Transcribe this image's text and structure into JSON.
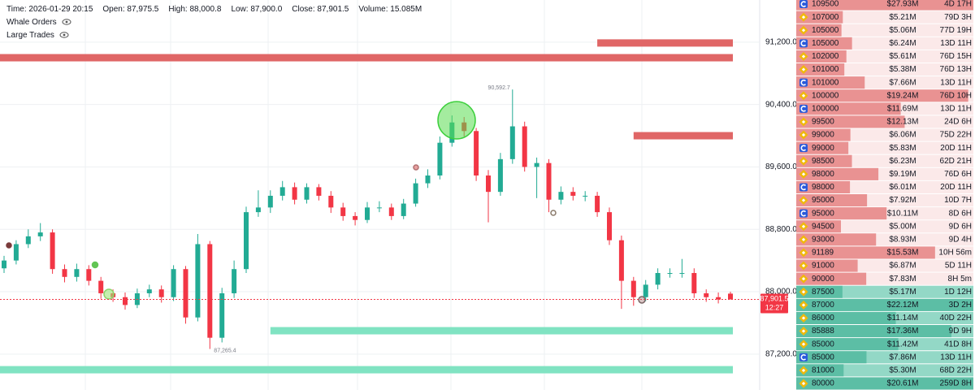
{
  "header": {
    "fields": [
      {
        "label": "Time:",
        "value": "2026-01-29 20:15"
      },
      {
        "label": "Open:",
        "value": "87,975.5"
      },
      {
        "label": "High:",
        "value": "88,000.8"
      },
      {
        "label": "Low:",
        "value": "87,900.0"
      },
      {
        "label": "Close:",
        "value": "87,901.5"
      },
      {
        "label": "Volume:",
        "value": "15.085M"
      }
    ],
    "toggles": [
      "Whale Orders",
      "Large Trades"
    ]
  },
  "chart_data": {
    "type": "candlestick",
    "open": [
      88300,
      88400,
      88610,
      88710,
      88760,
      88290,
      88190,
      88290,
      88140,
      87980,
      87930,
      87830,
      87980,
      88030,
      87930,
      88290,
      87670,
      88610,
      87410,
      87980,
      88290,
      89020,
      89080,
      89230,
      89340,
      89180,
      89340,
      89230,
      89080,
      88970,
      88920,
      89080,
      89080,
      88970,
      89130,
      89390,
      89490,
      89910,
      90170,
      90060,
      89490,
      89280,
      89700,
      90120,
      89600,
      89650,
      89180,
      89280,
      89230,
      89230,
      89020,
      88660,
      88140,
      87930,
      88090,
      88240,
      88240,
      88240,
      87980,
      87930,
      87975.5
    ],
    "high": [
      88460,
      88660,
      88800,
      88880,
      88800,
      88350,
      88360,
      88340,
      88190,
      88030,
      87990,
      88040,
      88090,
      88080,
      88340,
      88330,
      88740,
      88650,
      88050,
      88400,
      89090,
      89300,
      89300,
      89420,
      89400,
      89390,
      89380,
      89290,
      89140,
      89020,
      89150,
      89160,
      89130,
      89190,
      89450,
      89570,
      89990,
      90260,
      90240,
      90100,
      89560,
      89780,
      90592.7,
      90180,
      89720,
      89700,
      89350,
      89340,
      89290,
      89280,
      89080,
      88720,
      88190,
      88150,
      88300,
      88300,
      88420,
      88300,
      88030,
      87990,
      88000.8
    ],
    "low": [
      88240,
      88350,
      88560,
      88650,
      88230,
      88120,
      88130,
      88080,
      87910,
      87870,
      87770,
      87790,
      87930,
      87860,
      87880,
      87590,
      87620,
      87265.4,
      87350,
      87920,
      88240,
      88960,
      89010,
      89170,
      89120,
      89130,
      89170,
      89010,
      88910,
      88850,
      88880,
      89020,
      88920,
      88930,
      89090,
      89330,
      89440,
      89860,
      89990,
      89420,
      88890,
      89230,
      89640,
      89540,
      89200,
      89020,
      89120,
      89170,
      89160,
      88960,
      88600,
      87780,
      87820,
      87880,
      88030,
      88180,
      88180,
      87920,
      87870,
      87850,
      87900
    ],
    "close": [
      88400,
      88610,
      88710,
      88760,
      88290,
      88190,
      88290,
      88140,
      87980,
      87930,
      87830,
      87980,
      88030,
      87930,
      88290,
      87670,
      88610,
      87410,
      87980,
      88290,
      89020,
      89080,
      89230,
      89340,
      89180,
      89340,
      89230,
      89080,
      88970,
      88920,
      89080,
      89080,
      88970,
      89130,
      89390,
      89490,
      89910,
      90170,
      90060,
      89490,
      89280,
      89700,
      90120,
      89600,
      89650,
      89180,
      89280,
      89230,
      89230,
      89020,
      88660,
      88140,
      87930,
      88090,
      88240,
      88240,
      88240,
      87980,
      87930,
      87900,
      87901.5
    ],
    "up_color": "#22ab94",
    "down_color": "#f23645",
    "ylim": [
      86740,
      91740
    ],
    "yticks": [
      {
        "value": 91200,
        "label": "91,200.0"
      },
      {
        "value": 90400,
        "label": "90,400.0"
      },
      {
        "value": 89600,
        "label": "89,600.0"
      },
      {
        "value": 88800,
        "label": "88,800.0"
      },
      {
        "value": 88000,
        "label": "88,000.0"
      },
      {
        "value": 87200,
        "label": "87,200.0"
      }
    ],
    "grid": true,
    "annotations": [
      {
        "value": 90592.7,
        "label": "90,592.7"
      },
      {
        "value": 87265.4,
        "label": "87,265.4"
      }
    ],
    "last_price": {
      "value": 87901.5,
      "label": "87,901.5",
      "countdown": "12:27",
      "color": "#f23645"
    },
    "whale_levels": [
      {
        "price": 91189,
        "start": 49,
        "side": "ask"
      },
      {
        "price": 91000,
        "start": 0,
        "side": "ask"
      },
      {
        "price": 90000,
        "start": 52,
        "side": "ask"
      },
      {
        "price": 87500,
        "start": 22,
        "side": "bid"
      },
      {
        "price": 87000,
        "start": 0,
        "side": "bid"
      }
    ],
    "ask_color": "#e06666",
    "bid_color": "#80e3c2"
  },
  "order_book": {
    "ask_bg": "#fbe9e9",
    "ask_bar": "#e57c7c",
    "bid_bg": "#93d8c6",
    "bid_bar": "#4fb89c",
    "rows": [
      {
        "exchange": "coinbase",
        "price": 109500,
        "amount": 27.93,
        "amount_label": "$27.93M",
        "age": "4D 17H",
        "side": "ask"
      },
      {
        "exchange": "binance",
        "price": 107000,
        "amount": 5.21,
        "amount_label": "$5.21M",
        "age": "79D 3H",
        "side": "ask"
      },
      {
        "exchange": "binance",
        "price": 105000,
        "amount": 5.06,
        "amount_label": "$5.06M",
        "age": "77D 19H",
        "side": "ask"
      },
      {
        "exchange": "coinbase",
        "price": 105000,
        "amount": 6.24,
        "amount_label": "$6.24M",
        "age": "13D 11H",
        "side": "ask"
      },
      {
        "exchange": "binance",
        "price": 102000,
        "amount": 5.61,
        "amount_label": "$5.61M",
        "age": "76D 15H",
        "side": "ask"
      },
      {
        "exchange": "binance",
        "price": 101000,
        "amount": 5.38,
        "amount_label": "$5.38M",
        "age": "76D 13H",
        "side": "ask"
      },
      {
        "exchange": "coinbase",
        "price": 101000,
        "amount": 7.66,
        "amount_label": "$7.66M",
        "age": "13D 11H",
        "side": "ask"
      },
      {
        "exchange": "binance",
        "price": 100000,
        "amount": 19.24,
        "amount_label": "$19.24M",
        "age": "76D 10H",
        "side": "ask"
      },
      {
        "exchange": "coinbase",
        "price": 100000,
        "amount": 11.69,
        "amount_label": "$11.69M",
        "age": "13D 11H",
        "side": "ask"
      },
      {
        "exchange": "binance",
        "price": 99500,
        "amount": 12.13,
        "amount_label": "$12.13M",
        "age": "24D 6H",
        "side": "ask"
      },
      {
        "exchange": "binance",
        "price": 99000,
        "amount": 6.06,
        "amount_label": "$6.06M",
        "age": "75D 22H",
        "side": "ask"
      },
      {
        "exchange": "coinbase",
        "price": 99000,
        "amount": 5.83,
        "amount_label": "$5.83M",
        "age": "20D 11H",
        "side": "ask"
      },
      {
        "exchange": "binance",
        "price": 98500,
        "amount": 6.23,
        "amount_label": "$6.23M",
        "age": "62D 21H",
        "side": "ask"
      },
      {
        "exchange": "binance",
        "price": 98000,
        "amount": 9.19,
        "amount_label": "$9.19M",
        "age": "76D 6H",
        "side": "ask"
      },
      {
        "exchange": "coinbase",
        "price": 98000,
        "amount": 6.01,
        "amount_label": "$6.01M",
        "age": "20D 11H",
        "side": "ask"
      },
      {
        "exchange": "binance",
        "price": 95000,
        "amount": 7.92,
        "amount_label": "$7.92M",
        "age": "10D 7H",
        "side": "ask"
      },
      {
        "exchange": "coinbase",
        "price": 95000,
        "amount": 10.11,
        "amount_label": "$10.11M",
        "age": "8D 6H",
        "side": "ask"
      },
      {
        "exchange": "binance",
        "price": 94500,
        "amount": 5.0,
        "amount_label": "$5.00M",
        "age": "9D 6H",
        "side": "ask"
      },
      {
        "exchange": "binance",
        "price": 93000,
        "amount": 8.93,
        "amount_label": "$8.93M",
        "age": "9D 4H",
        "side": "ask"
      },
      {
        "exchange": "binance",
        "price": 91189,
        "amount": 15.53,
        "amount_label": "$15.53M",
        "age": "10H 56m",
        "side": "ask"
      },
      {
        "exchange": "binance",
        "price": 91000,
        "amount": 6.87,
        "amount_label": "$6.87M",
        "age": "5D 11H",
        "side": "ask"
      },
      {
        "exchange": "binance",
        "price": 90000,
        "amount": 7.83,
        "amount_label": "$7.83M",
        "age": "8H 5m",
        "side": "ask"
      },
      {
        "exchange": "binance",
        "price": 87500,
        "amount": 5.17,
        "amount_label": "$5.17M",
        "age": "1D 12H",
        "side": "bid"
      },
      {
        "exchange": "binance",
        "price": 87000,
        "amount": 22.12,
        "amount_label": "$22.12M",
        "age": "3D 2H",
        "side": "bid"
      },
      {
        "exchange": "binance",
        "price": 86000,
        "amount": 11.14,
        "amount_label": "$11.14M",
        "age": "40D 22H",
        "side": "bid"
      },
      {
        "exchange": "binance",
        "price": 85888,
        "amount": 17.36,
        "amount_label": "$17.36M",
        "age": "9D 9H",
        "side": "bid"
      },
      {
        "exchange": "binance",
        "price": 85000,
        "amount": 11.42,
        "amount_label": "$11.42M",
        "age": "41D 8H",
        "side": "bid"
      },
      {
        "exchange": "coinbase",
        "price": 85000,
        "amount": 7.86,
        "amount_label": "$7.86M",
        "age": "13D 11H",
        "side": "bid"
      },
      {
        "exchange": "binance",
        "price": 81000,
        "amount": 5.3,
        "amount_label": "$5.30M",
        "age": "68D 22H",
        "side": "bid"
      },
      {
        "exchange": "binance",
        "price": 80000,
        "amount": 20.61,
        "amount_label": "$20.61M",
        "age": "259D 8H",
        "side": "bid"
      }
    ]
  }
}
